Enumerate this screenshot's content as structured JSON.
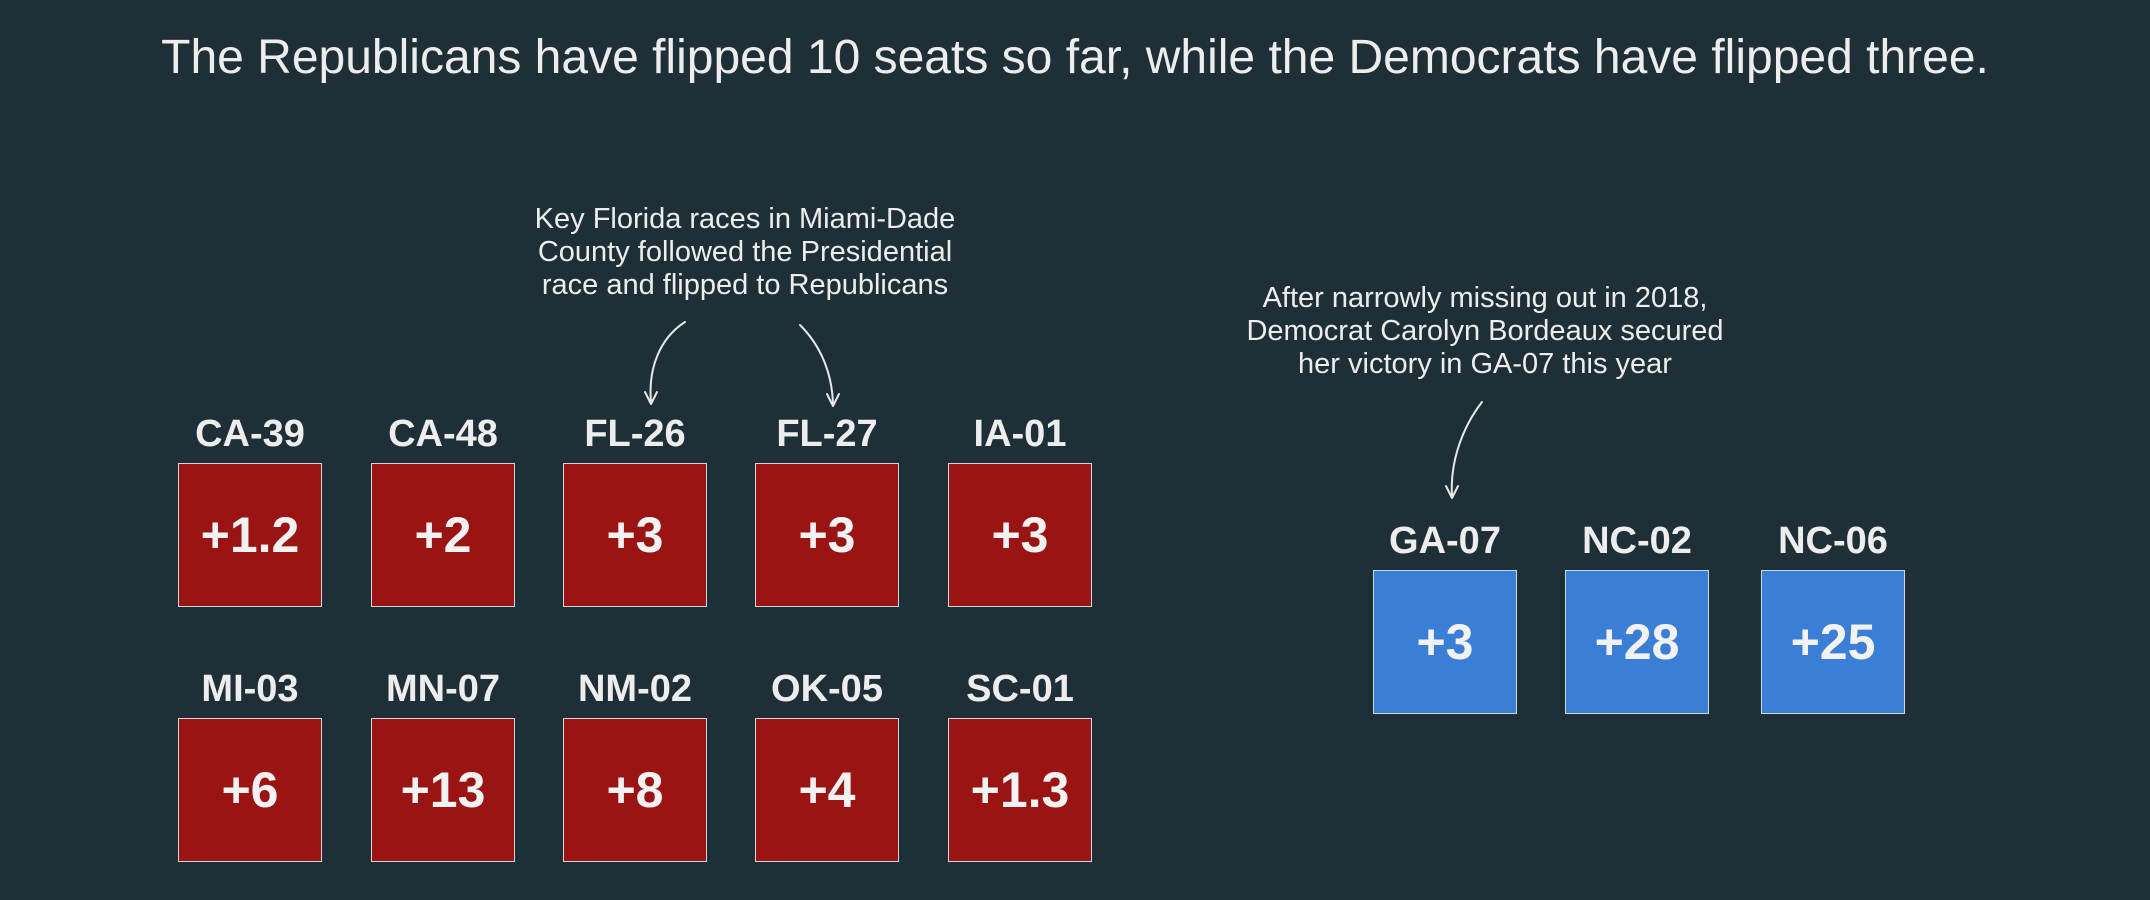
{
  "headline": "The Republicans have flipped 10 seats so far, while the Democrats have flipped three.",
  "colors": {
    "background": "#1f2f38",
    "republican": "#9b1414",
    "democrat": "#3a7fd5"
  },
  "annotations": {
    "florida": "Key Florida races in Miami-Dade\nCounty followed the Presidential\nrace and flipped to Republicans",
    "georgia": "After narrowly missing out in 2018,\nDemocrat Carolyn Bordeaux secured\nher victory in GA-07 this year"
  },
  "republican_flips": [
    {
      "district": "CA-39",
      "margin": "+1.2"
    },
    {
      "district": "CA-48",
      "margin": "+2"
    },
    {
      "district": "FL-26",
      "margin": "+3"
    },
    {
      "district": "FL-27",
      "margin": "+3"
    },
    {
      "district": "IA-01",
      "margin": "+3"
    },
    {
      "district": "MI-03",
      "margin": "+6"
    },
    {
      "district": "MN-07",
      "margin": "+13"
    },
    {
      "district": "NM-02",
      "margin": "+8"
    },
    {
      "district": "OK-05",
      "margin": "+4"
    },
    {
      "district": "SC-01",
      "margin": "+1.3"
    }
  ],
  "democrat_flips": [
    {
      "district": "GA-07",
      "margin": "+3"
    },
    {
      "district": "NC-02",
      "margin": "+28"
    },
    {
      "district": "NC-06",
      "margin": "+25"
    }
  ]
}
